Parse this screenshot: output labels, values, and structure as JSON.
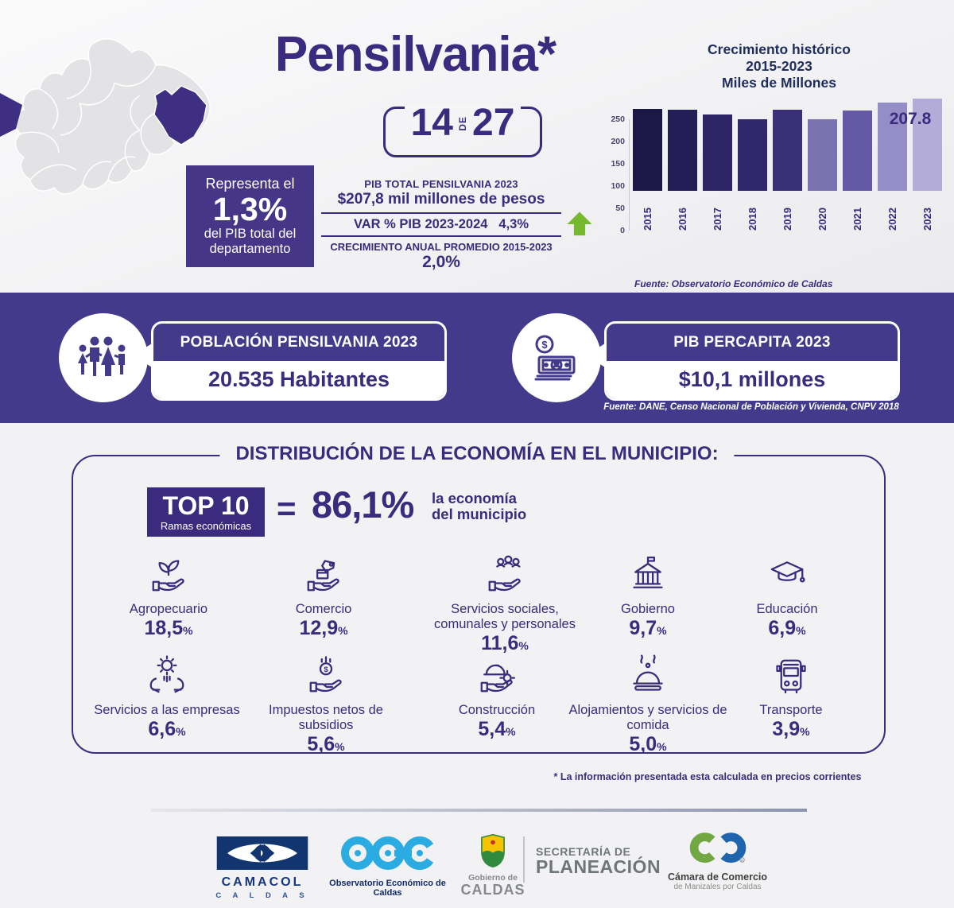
{
  "page": {
    "title": "Pensilvania*",
    "rank": {
      "n1": "14",
      "de": "DE",
      "n2": "27"
    }
  },
  "representa": {
    "l1": "Representa el",
    "value": "1,3%",
    "l2": "del PIB total del",
    "l3": "departamento"
  },
  "pib": {
    "label": "PIB TOTAL PENSILVANIA 2023",
    "value": "$207,8 mil millones de pesos",
    "var_label": "VAR % PIB 2023-2024",
    "var_value": "4,3%",
    "growth_label": "CRECIMIENTO ANUAL PROMEDIO 2015-2023",
    "growth_value": "2,0%"
  },
  "band": {
    "poblacion_title": "POBLACIÓN PENSILVANIA 2023",
    "poblacion_value": "20.535 Habitantes",
    "percapita_title": "PIB PERCAPITA 2023",
    "percapita_value": "$10,1 millones",
    "fuente": "Fuente: DANE, Censo Nacional de Población y Vivienda, CNPV 2018"
  },
  "distribucion": {
    "title": "DISTRIBUCIÓN DE LA ECONOMÍA EN EL MUNICIPIO:",
    "top_label": "TOP 10",
    "top_sublabel": "Ramas económicas",
    "equals": "=",
    "total": "86,1%",
    "desc_l1": "la economía",
    "desc_l2": "del municipio",
    "percent_sign": "%",
    "sectors": [
      {
        "name": "Agropecuario",
        "value": "18,5",
        "icon": "sprout-hand-icon"
      },
      {
        "name": "Comercio",
        "value": "12,9",
        "icon": "commerce-hand-icon"
      },
      {
        "name": "Servicios sociales, comunales y personales",
        "value": "11,6",
        "icon": "people-hand-icon"
      },
      {
        "name": "Gobierno",
        "value": "9,7",
        "icon": "government-building-icon"
      },
      {
        "name": "Educación",
        "value": "6,9",
        "icon": "graduation-cap-icon"
      },
      {
        "name": "Servicios a las empresas",
        "value": "6,6",
        "icon": "gear-hands-icon"
      },
      {
        "name": "Impuestos netos de subsidios",
        "value": "5,6",
        "icon": "coin-hand-icon"
      },
      {
        "name": "Construcción",
        "value": "5,4",
        "icon": "helmet-hand-icon"
      },
      {
        "name": "Alojamientos y servicios de comida",
        "value": "5,0",
        "icon": "food-cloche-icon"
      },
      {
        "name": "Transporte",
        "value": "3,9",
        "icon": "bus-icon"
      }
    ]
  },
  "footnote": "* La información presentada esta calculada en precios corrientes",
  "footer": {
    "camacol": {
      "name": "CAMACOL",
      "sub": "C A L D A S"
    },
    "oec": {
      "caption": "Observatorio Económico de Caldas"
    },
    "gobierno": {
      "l1": "Gobierno de",
      "l2": "CALDAS"
    },
    "secretaria": {
      "l1": "SECRETARÍA DE",
      "l2": "PLANEACIÓN"
    },
    "camara": {
      "l1": "Cámara de Comercio",
      "l2": "de Manizales por Caldas",
      "reg": "®"
    }
  },
  "colors": {
    "purple_dark": "#3b2b7e",
    "purple_box": "#463687",
    "band_purple": "#443a8c",
    "green_arrow": "#76b82e"
  },
  "chart_data": [
    {
      "type": "bar",
      "title_lines": [
        "Crecimiento histórico",
        "2015-2023",
        "Miles de Millones"
      ],
      "categories": [
        "2015",
        "2016",
        "2017",
        "2018",
        "2019",
        "2020",
        "2021",
        "2022",
        "2023"
      ],
      "values": [
        184,
        182,
        171,
        160,
        182,
        161,
        180,
        198,
        207.8
      ],
      "bar_colors": [
        "#1b1747",
        "#241e56",
        "#2d2565",
        "#30276d",
        "#3a3078",
        "#7b72b2",
        "#6359a4",
        "#958dc6",
        "#b3acd9"
      ],
      "ylim": [
        0,
        250
      ],
      "yticks": [
        250,
        200,
        150,
        100,
        50,
        0
      ],
      "annotation": "207.8",
      "grid": false,
      "legend": "none",
      "source": "Fuente: Observatorio Económico de Caldas"
    },
    {
      "type": "bar",
      "title": "TOP 10 Ramas económicas = 86,1% de la economía del municipio",
      "categories": [
        "Agropecuario",
        "Comercio",
        "Servicios sociales, comunales y personales",
        "Gobierno",
        "Educación",
        "Servicios a las empresas",
        "Impuestos netos de subsidios",
        "Construcción",
        "Alojamientos y servicios de comida",
        "Transporte"
      ],
      "values": [
        18.5,
        12.9,
        11.6,
        9.7,
        6.9,
        6.6,
        5.6,
        5.4,
        5.0,
        3.9
      ],
      "unit": "%",
      "total_top10": 86.1
    }
  ]
}
